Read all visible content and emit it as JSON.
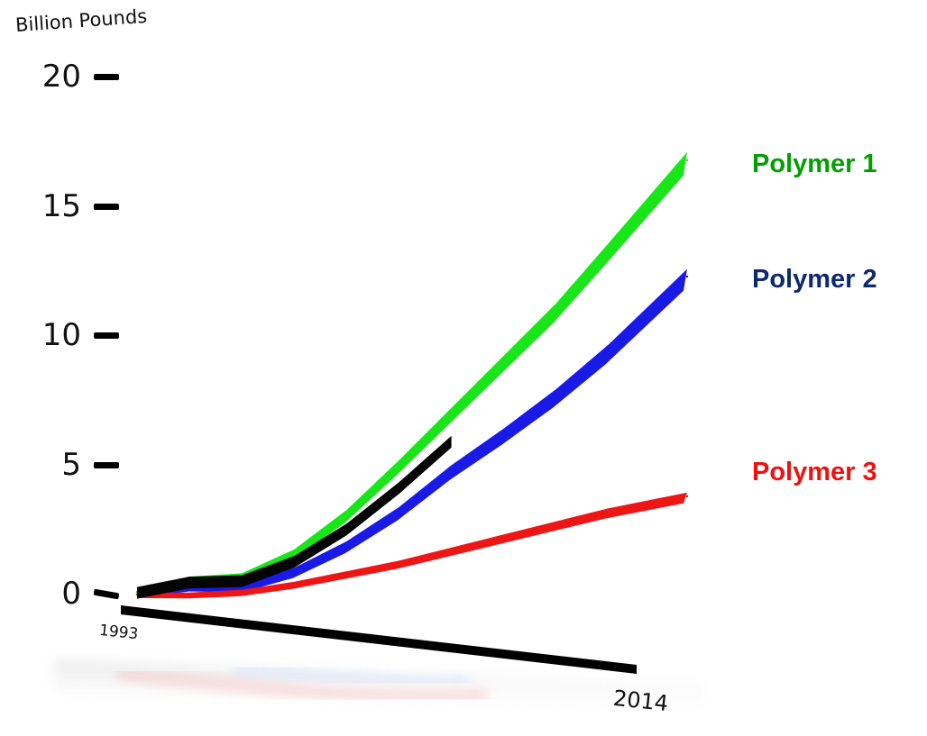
{
  "chart_data": {
    "type": "area",
    "ylabel": "Billion Pounds",
    "y_ticks": [
      "0",
      "5",
      "10",
      "15",
      "20"
    ],
    "ylim": [
      0,
      20
    ],
    "x_ticks": [
      "1993",
      "2014"
    ],
    "xlim": [
      1993,
      2014
    ],
    "grid": false,
    "legend_placement": "right",
    "series": [
      {
        "name": "Polymer 1",
        "color": "#00a000",
        "fill": "#19e619",
        "x": [
          1993,
          1995,
          1997,
          1999,
          2001,
          2003,
          2005,
          2007,
          2009,
          2011,
          2014
        ],
        "y": [
          0.1,
          0.6,
          0.7,
          1.6,
          3.1,
          5.0,
          7.0,
          9.0,
          11.0,
          13.3,
          16.8
        ]
      },
      {
        "name": "Polymer 2",
        "color": "#0d2a6e",
        "fill": "#1a1ae6",
        "x": [
          1993,
          1995,
          1997,
          1999,
          2001,
          2003,
          2005,
          2007,
          2009,
          2011,
          2014
        ],
        "y": [
          0.0,
          0.3,
          0.3,
          0.9,
          1.9,
          3.2,
          4.8,
          6.2,
          7.7,
          9.4,
          12.3
        ]
      },
      {
        "name": "Polymer 3",
        "color": "#ee1111",
        "fill": "#ee1515",
        "x": [
          1993,
          1995,
          1997,
          1999,
          2001,
          2003,
          2005,
          2007,
          2009,
          2011,
          2014
        ],
        "y": [
          0.0,
          0.0,
          0.1,
          0.4,
          0.8,
          1.2,
          1.7,
          2.2,
          2.7,
          3.2,
          3.8
        ]
      }
    ]
  }
}
